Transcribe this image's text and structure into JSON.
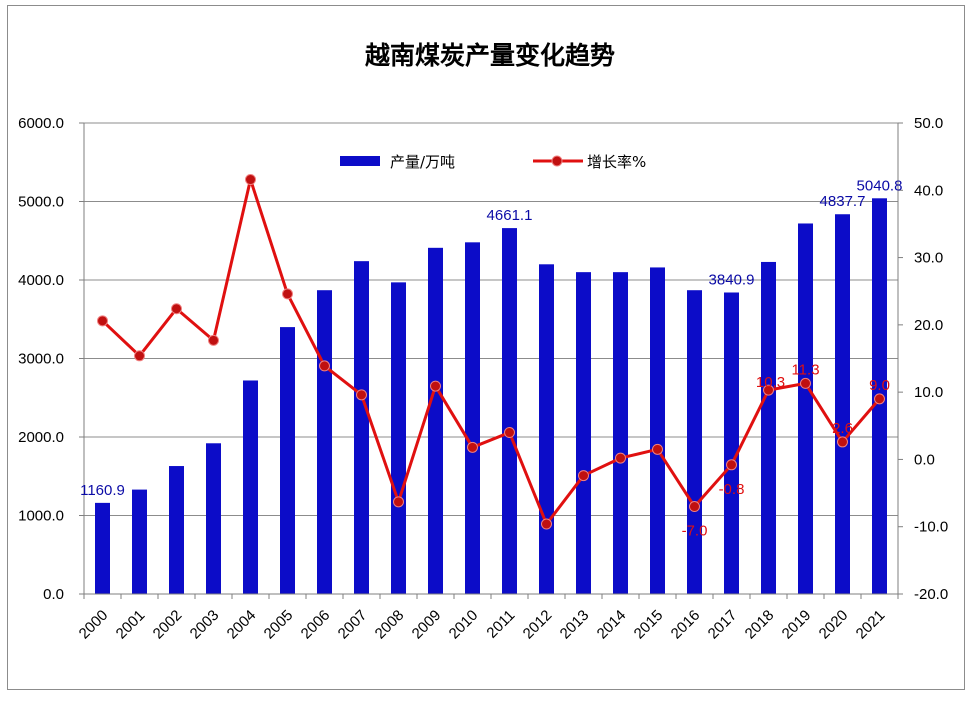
{
  "chart_data": {
    "type": "bar+line",
    "title": "越南煤炭产量变化趋势",
    "categories": [
      "2000",
      "2001",
      "2002",
      "2003",
      "2004",
      "2005",
      "2006",
      "2007",
      "2008",
      "2009",
      "2010",
      "2011",
      "2012",
      "2013",
      "2014",
      "2015",
      "2016",
      "2017",
      "2018",
      "2019",
      "2020",
      "2021"
    ],
    "series": [
      {
        "name": "产量/万吨",
        "type": "bar",
        "axis": "left",
        "color": "#0c0cc8",
        "values": [
          1160.9,
          1330,
          1630,
          1920,
          2720,
          3400,
          3870,
          4240,
          3970,
          4410,
          4480,
          4661.1,
          4200,
          4100,
          4100,
          4160,
          3870,
          3840.9,
          4230,
          4720,
          4837.7,
          5040.8
        ]
      },
      {
        "name": "增长率%",
        "type": "line",
        "axis": "right",
        "color": "#e01010",
        "values": [
          20.6,
          15.4,
          22.4,
          17.7,
          41.6,
          24.6,
          13.9,
          9.6,
          -6.3,
          10.9,
          1.8,
          4.0,
          -9.6,
          -2.4,
          0.2,
          1.5,
          -7.0,
          -0.8,
          10.3,
          11.3,
          2.6,
          9.0
        ]
      }
    ],
    "bar_labels": [
      {
        "index": 0,
        "text": "1160.9"
      },
      {
        "index": 11,
        "text": "4661.1"
      },
      {
        "index": 17,
        "text": "3840.9"
      },
      {
        "index": 20,
        "text": "4837.7"
      },
      {
        "index": 21,
        "text": "5040.8"
      }
    ],
    "rate_labels": [
      {
        "index": 16,
        "text": "-7.0",
        "pos": "below"
      },
      {
        "index": 17,
        "text": "-0.8",
        "pos": "below"
      },
      {
        "index": 18,
        "text": "10.3",
        "pos": "left"
      },
      {
        "index": 19,
        "text": "11.3",
        "pos": "above"
      },
      {
        "index": 20,
        "text": "2.6",
        "pos": "above"
      },
      {
        "index": 21,
        "text": "9.0",
        "pos": "above"
      }
    ],
    "left_axis": {
      "min": 0,
      "max": 6000,
      "ticks": [
        "0.0",
        "1000.0",
        "2000.0",
        "3000.0",
        "4000.0",
        "5000.0",
        "6000.0"
      ]
    },
    "right_axis": {
      "min": -20,
      "max": 50,
      "ticks": [
        "-20.0",
        "-10.0",
        "0.0",
        "10.0",
        "20.0",
        "30.0",
        "40.0",
        "50.0"
      ]
    },
    "grid": true,
    "legend_position": "top-center"
  }
}
